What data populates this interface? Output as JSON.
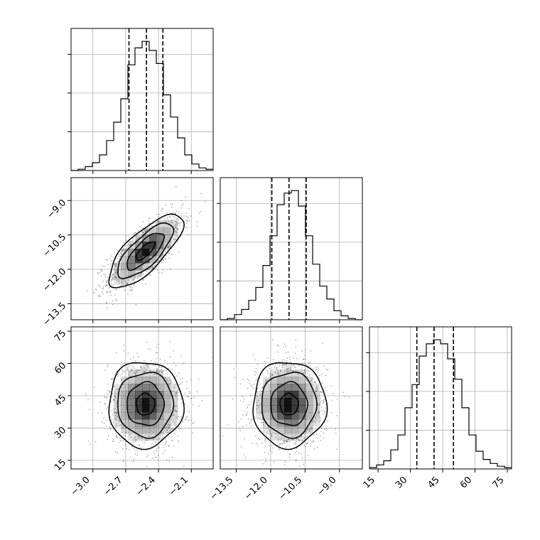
{
  "chart_data": {
    "type": "corner",
    "title": "",
    "parameters": [
      {
        "id": "p0",
        "label": "",
        "range": [
          -3.2,
          -1.9
        ],
        "ticks": [
          -3.0,
          -2.7,
          -2.4,
          -2.1
        ],
        "tick_labels": [
          "−3.0",
          "−2.7",
          "−2.4",
          "−2.1"
        ],
        "quantiles": [
          -2.67,
          -2.51,
          -2.36
        ]
      },
      {
        "id": "p1",
        "label": "",
        "range": [
          -14.2,
          -8.0
        ],
        "ticks": [
          -13.5,
          -12.0,
          -10.5,
          -9.0
        ],
        "tick_labels": [
          "−13.5",
          "−12.0",
          "−10.5",
          "−9.0"
        ],
        "quantiles": [
          -11.95,
          -11.2,
          -10.45
        ]
      },
      {
        "id": "p2",
        "label": "",
        "range": [
          11,
          77
        ],
        "ticks": [
          15,
          30,
          45,
          60,
          75
        ],
        "tick_labels": [
          "15",
          "30",
          "45",
          "60",
          "75"
        ],
        "quantiles": [
          33,
          41,
          50
        ]
      }
    ],
    "histograms": [
      {
        "param": "p0",
        "bin_edges": [
          -3.2,
          -3.135,
          -3.07,
          -3.005,
          -2.94,
          -2.875,
          -2.81,
          -2.745,
          -2.68,
          -2.615,
          -2.55,
          -2.485,
          -2.42,
          -2.355,
          -2.29,
          -2.225,
          -2.16,
          -2.095,
          -2.03,
          -1.965,
          -1.9
        ],
        "counts": [
          0,
          1,
          3,
          6,
          12,
          23,
          37,
          55,
          81,
          94,
          99,
          92,
          82,
          58,
          41,
          25,
          12,
          5,
          2,
          1
        ]
      },
      {
        "param": "p1",
        "bin_edges": [
          -14.2,
          -13.89,
          -13.58,
          -13.27,
          -12.96,
          -12.65,
          -12.34,
          -12.03,
          -11.72,
          -11.41,
          -11.1,
          -10.79,
          -10.48,
          -10.17,
          -9.86,
          -9.55,
          -9.24,
          -8.93,
          -8.62,
          -8.31,
          -8.0
        ],
        "counts": [
          0,
          1,
          4,
          8,
          15,
          25,
          42,
          65,
          89,
          98,
          100,
          88,
          65,
          43,
          26,
          16,
          7,
          3,
          1,
          0
        ]
      },
      {
        "param": "p2",
        "bin_edges": [
          11,
          14.3,
          17.6,
          20.9,
          24.2,
          27.5,
          30.8,
          34.1,
          37.4,
          40.7,
          44.0,
          47.3,
          50.6,
          53.9,
          57.2,
          60.5,
          63.8,
          67.1,
          70.4,
          73.7,
          77
        ],
        "counts": [
          1,
          3,
          6,
          14,
          25,
          45,
          62,
          83,
          92,
          95,
          92,
          81,
          66,
          45,
          25,
          13,
          7,
          4,
          2,
          1
        ]
      }
    ],
    "pairs": [
      {
        "x": "p0",
        "y": "p1",
        "center": [
          -2.52,
          -11.2
        ],
        "sigma": [
          0.17,
          0.8
        ],
        "correlation": 0.75
      },
      {
        "x": "p0",
        "y": "p2",
        "center": [
          -2.52,
          41
        ],
        "sigma": [
          0.17,
          10
        ],
        "correlation": 0.0
      },
      {
        "x": "p1",
        "y": "p2",
        "center": [
          -11.2,
          41
        ],
        "sigma": [
          0.8,
          10
        ],
        "correlation": 0.0
      }
    ],
    "contour_levels_sigma": [
      0.5,
      1.0,
      1.5,
      2.0
    ],
    "grid": true,
    "colors": {
      "line": "#000000",
      "grid": "#b0b0b0",
      "density": "#000000",
      "points": "#555555"
    }
  }
}
